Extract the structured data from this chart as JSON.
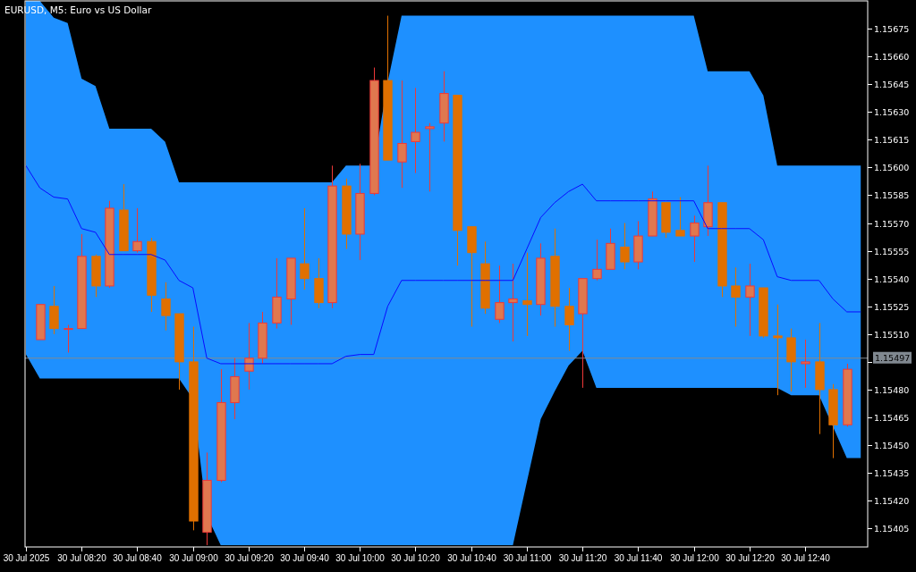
{
  "chart_data": {
    "type": "candlestick",
    "title": "EURUSD, M5: Euro vs US Dollar",
    "categories": [
      "30 Jul 2025",
      null,
      null,
      null,
      "30 Jul 08:20",
      null,
      null,
      null,
      "30 Jul 08:40",
      null,
      null,
      null,
      "30 Jul 09:00",
      null,
      null,
      null,
      "30 Jul 09:20",
      null,
      null,
      null,
      "30 Jul 09:40",
      null,
      null,
      null,
      "30 Jul 10:00",
      null,
      null,
      null,
      "30 Jul 10:20",
      null,
      null,
      null,
      "30 Jul 10:40",
      null,
      null,
      null,
      "30 Jul 11:00",
      null,
      null,
      null,
      "30 Jul 11:20",
      null,
      null,
      null,
      "30 Jul 11:40",
      null,
      null,
      null,
      "30 Jul 12:00",
      null,
      null,
      null,
      "30 Jul 12:20",
      null,
      null,
      null,
      "30 Jul 12:40",
      null,
      null,
      null,
      null
    ],
    "ohlc": [
      null,
      [
        1.15507,
        1.15526,
        1.15507,
        1.15526
      ],
      [
        1.15525,
        1.15536,
        1.1551,
        1.15513
      ],
      [
        1.15513,
        1.15515,
        1.155,
        1.15513
      ],
      [
        1.15513,
        1.15564,
        1.15513,
        1.15552
      ],
      [
        1.15552,
        1.15553,
        1.1553,
        1.15536
      ],
      [
        1.15536,
        1.15582,
        1.15535,
        1.15578
      ],
      [
        1.15577,
        1.15591,
        1.15555,
        1.15555
      ],
      [
        1.15555,
        1.15578,
        1.15554,
        1.1556
      ],
      [
        1.1556,
        1.15562,
        1.15522,
        1.15531
      ],
      [
        1.15529,
        1.15538,
        1.15512,
        1.1552
      ],
      [
        1.15521,
        1.15521,
        1.1548,
        1.15495
      ],
      [
        1.15495,
        1.15514,
        1.15404,
        1.15409
      ],
      [
        1.15403,
        1.15446,
        1.15396,
        1.15431
      ],
      [
        1.15431,
        1.15491,
        1.1543,
        1.15473
      ],
      [
        1.15473,
        1.15497,
        1.15464,
        1.15487
      ],
      [
        1.1549,
        1.15516,
        1.1548,
        1.15497
      ],
      [
        1.15497,
        1.15522,
        1.15494,
        1.15516
      ],
      [
        1.15516,
        1.15551,
        1.15513,
        1.1553
      ],
      [
        1.15529,
        1.15551,
        1.15515,
        1.15551
      ],
      [
        1.15548,
        1.15578,
        1.15534,
        1.1554
      ],
      [
        1.1554,
        1.15551,
        1.15524,
        1.15527
      ],
      [
        1.15527,
        1.15601,
        1.15524,
        1.1559
      ],
      [
        1.1559,
        1.15594,
        1.15556,
        1.15564
      ],
      [
        1.15564,
        1.15602,
        1.1555,
        1.15586
      ],
      [
        1.15586,
        1.15654,
        1.15585,
        1.15647
      ],
      [
        1.15647,
        1.15682,
        1.15604,
        1.15604
      ],
      [
        1.15603,
        1.15647,
        1.15589,
        1.15613
      ],
      [
        1.15614,
        1.15643,
        1.15597,
        1.15619
      ],
      [
        1.15621,
        1.15624,
        1.15587,
        1.15622
      ],
      [
        1.15624,
        1.15652,
        1.15614,
        1.1564
      ],
      [
        1.15639,
        1.15639,
        1.15547,
        1.15566
      ],
      [
        1.15568,
        1.15568,
        1.15514,
        1.15554
      ],
      [
        1.15548,
        1.1556,
        1.15521,
        1.15524
      ],
      [
        1.15518,
        1.15547,
        1.15516,
        1.15527
      ],
      [
        1.15527,
        1.15548,
        1.15506,
        1.15529
      ],
      [
        1.15528,
        1.15554,
        1.15509,
        1.15526
      ],
      [
        1.15526,
        1.15559,
        1.1552,
        1.15551
      ],
      [
        1.15552,
        1.15567,
        1.15514,
        1.15525
      ],
      [
        1.15525,
        1.15535,
        1.15501,
        1.15515
      ],
      [
        1.15521,
        1.1554,
        1.15481,
        1.1554
      ],
      [
        1.1554,
        1.15561,
        1.15539,
        1.15545
      ],
      [
        1.15545,
        1.15567,
        1.15545,
        1.15559
      ],
      [
        1.15557,
        1.1557,
        1.15545,
        1.15549
      ],
      [
        1.15549,
        1.15571,
        1.15545,
        1.15563
      ],
      [
        1.15563,
        1.15587,
        1.15563,
        1.15583
      ],
      [
        1.15581,
        1.15581,
        1.15562,
        1.15565
      ],
      [
        1.15566,
        1.15584,
        1.15563,
        1.15563
      ],
      [
        1.15563,
        1.15574,
        1.15549,
        1.1557
      ],
      [
        1.15568,
        1.15601,
        1.15563,
        1.15581
      ],
      [
        1.15581,
        1.15581,
        1.1553,
        1.15536
      ],
      [
        1.15536,
        1.15546,
        1.15514,
        1.1553
      ],
      [
        1.1553,
        1.15548,
        1.15509,
        1.15536
      ],
      [
        1.15535,
        1.15535,
        1.15508,
        1.15509
      ],
      [
        1.15509,
        1.15526,
        1.15477,
        1.15508
      ],
      [
        1.15508,
        1.15513,
        1.15479,
        1.15495
      ],
      [
        1.15494,
        1.15507,
        1.15481,
        1.15495
      ],
      [
        1.15495,
        1.15516,
        1.15456,
        1.1548
      ],
      [
        1.1548,
        1.15483,
        1.15443,
        1.15461
      ],
      [
        1.15461,
        1.15494,
        1.1546,
        1.15491
      ],
      null
    ],
    "series": [
      {
        "type": "line",
        "color": "#0a0aff",
        "values": [
          1.15601,
          1.15589,
          1.15584,
          1.15583,
          1.15567,
          1.15565,
          1.15553,
          1.15553,
          1.15553,
          1.15553,
          1.1555,
          1.15539,
          1.15535,
          1.15497,
          1.15494,
          1.15494,
          1.15494,
          1.15494,
          1.15494,
          1.15494,
          1.15494,
          1.15494,
          1.15494,
          1.15498,
          1.15499,
          1.15499,
          1.15525,
          1.15539,
          1.15539,
          1.15539,
          1.15539,
          1.15539,
          1.15539,
          1.15539,
          1.15539,
          1.15539,
          1.15556,
          1.15573,
          1.15581,
          1.15587,
          1.15591,
          1.15582,
          1.15582,
          1.15582,
          1.15582,
          1.15582,
          1.15582,
          1.15582,
          1.15582,
          1.15567,
          1.15567,
          1.15567,
          1.15567,
          1.15561,
          1.15541,
          1.15539,
          1.15539,
          1.15539,
          1.15529,
          1.15522,
          1.15522
        ],
        "upper": [
          1.1569,
          1.1569,
          1.15681,
          1.15678,
          1.15648,
          1.15644,
          1.15621,
          1.15621,
          1.15621,
          1.15621,
          1.15614,
          1.15592,
          1.15592,
          1.15592,
          1.15592,
          1.15592,
          1.15592,
          1.15592,
          1.15592,
          1.15592,
          1.15592,
          1.15592,
          1.15592,
          1.15601,
          1.15601,
          1.15601,
          1.15646,
          1.15682,
          1.15682,
          1.15682,
          1.15682,
          1.15682,
          1.15682,
          1.15682,
          1.15682,
          1.15682,
          1.15682,
          1.15682,
          1.15682,
          1.15682,
          1.15682,
          1.15682,
          1.15682,
          1.15682,
          1.15682,
          1.15682,
          1.15682,
          1.15682,
          1.15682,
          1.15652,
          1.15652,
          1.15652,
          1.15652,
          1.15639,
          1.15601,
          1.15601,
          1.15601,
          1.15601,
          1.15601,
          1.15601,
          1.15601
        ],
        "lower": [
          1.15499,
          1.15486,
          1.15486,
          1.15486,
          1.15486,
          1.15486,
          1.15486,
          1.15486,
          1.15486,
          1.15486,
          1.15486,
          1.15486,
          1.15475,
          1.15412,
          1.15396,
          1.15396,
          1.15396,
          1.15396,
          1.15396,
          1.15396,
          1.15396,
          1.15396,
          1.15396,
          1.15396,
          1.15396,
          1.15396,
          1.15396,
          1.15396,
          1.15396,
          1.15396,
          1.15396,
          1.15396,
          1.15396,
          1.15396,
          1.15396,
          1.15396,
          1.1543,
          1.15464,
          1.15479,
          1.15493,
          1.15501,
          1.15481,
          1.15481,
          1.15481,
          1.15481,
          1.15481,
          1.15481,
          1.15481,
          1.15481,
          1.15481,
          1.15481,
          1.15481,
          1.15481,
          1.15481,
          1.15481,
          1.15477,
          1.15477,
          1.15477,
          1.1546,
          1.15443,
          1.15443
        ]
      }
    ],
    "ref_lines": [
      {
        "axis": "y",
        "value": 1.15497,
        "label": "1.15497",
        "color": "#808890"
      }
    ],
    "ylim": [
      1.15395,
      1.1569
    ],
    "yticks": [
      1.15405,
      {
        "value": 1.1542,
        "label": "1.15420"
      },
      1.15435,
      {
        "value": 1.1545,
        "label": "1.15450"
      },
      1.15465,
      {
        "value": 1.1548,
        "label": "1.15480"
      },
      {
        "value": 1.15495,
        "label": null
      },
      {
        "value": 1.1551,
        "label": "1.15510"
      },
      1.15525,
      {
        "value": 1.1554,
        "label": "1.15540"
      },
      1.15555,
      {
        "value": 1.1557,
        "label": "1.15570"
      },
      1.15585,
      {
        "value": 1.156,
        "label": "1.15600"
      },
      1.15615,
      {
        "value": 1.1563,
        "label": "1.15630"
      },
      1.15645,
      {
        "value": 1.1566,
        "label": "1.15660"
      },
      1.15675
    ]
  }
}
